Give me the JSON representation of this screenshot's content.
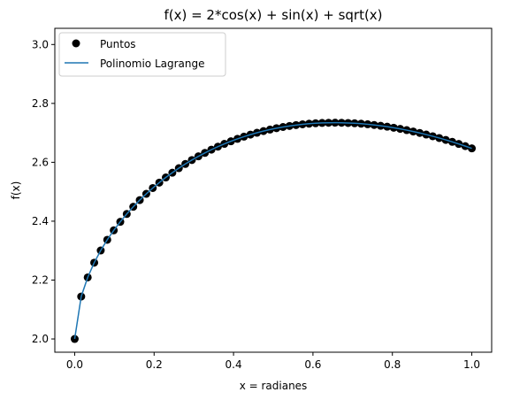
{
  "chart_data": {
    "type": "line",
    "title": "f(x) = 2*cos(x) + sin(x) + sqrt(x)",
    "xlabel": "x = radianes",
    "ylabel": "f(x)",
    "xlim": [
      -0.05,
      1.05
    ],
    "ylim": [
      1.955,
      3.055
    ],
    "xticks": [
      0.0,
      0.2,
      0.4,
      0.6,
      0.8,
      1.0
    ],
    "xtick_labels": [
      "0.0",
      "0.2",
      "0.4",
      "0.6",
      "0.8",
      "1.0"
    ],
    "yticks": [
      2.0,
      2.2,
      2.4,
      2.6,
      2.8,
      3.0
    ],
    "ytick_labels": [
      "2.0",
      "2.2",
      "2.4",
      "2.6",
      "2.8",
      "3.0"
    ],
    "grid": false,
    "legend_position": "top-left",
    "legend": [
      "Puntos",
      "Polinomio Lagrange"
    ],
    "series": [
      {
        "name": "Puntos",
        "style": "scatter",
        "color": "#000000",
        "x": [
          0.0,
          0.0164,
          0.0328,
          0.0492,
          0.0656,
          0.082,
          0.0984,
          0.1148,
          0.1311,
          0.1475,
          0.1639,
          0.1803,
          0.1967,
          0.2131,
          0.2295,
          0.2459,
          0.2623,
          0.2787,
          0.2951,
          0.3115,
          0.3279,
          0.3443,
          0.3607,
          0.377,
          0.3934,
          0.4098,
          0.4262,
          0.4426,
          0.459,
          0.4754,
          0.4918,
          0.5082,
          0.5246,
          0.541,
          0.5574,
          0.5738,
          0.5902,
          0.6066,
          0.623,
          0.6393,
          0.6557,
          0.6721,
          0.6885,
          0.7049,
          0.7213,
          0.7377,
          0.7541,
          0.7705,
          0.7869,
          0.8033,
          0.8197,
          0.8361,
          0.8525,
          0.8689,
          0.8852,
          0.9016,
          0.918,
          0.9344,
          0.9508,
          0.9672,
          0.9836,
          1.0
        ],
        "y": [
          2.0,
          2.144,
          2.2091,
          2.2591,
          2.3006,
          2.3368,
          2.3689,
          2.3979,
          2.4245,
          2.449,
          2.4717,
          2.4929,
          2.5126,
          2.5311,
          2.5485,
          2.5647,
          2.58,
          2.5943,
          2.6077,
          2.6202,
          2.6319,
          2.6429,
          2.6531,
          2.6626,
          2.6714,
          2.6796,
          2.6871,
          2.694,
          2.7003,
          2.706,
          2.7112,
          2.7158,
          2.7199,
          2.7234,
          2.7264,
          2.729,
          2.731,
          2.7326,
          2.7337,
          2.7343,
          2.7345,
          2.7343,
          2.7336,
          2.7325,
          2.731,
          2.7291,
          2.7267,
          2.724,
          2.7209,
          2.7174,
          2.7135,
          2.7092,
          2.7046,
          2.6996,
          2.6942,
          2.6885,
          2.6825,
          2.6761,
          2.6694,
          2.6623,
          2.6549,
          2.6472
        ]
      },
      {
        "name": "Polinomio Lagrange",
        "style": "line",
        "color": "#1f77b4",
        "x": [
          0.0,
          0.0164,
          0.0328,
          0.0492,
          0.0656,
          0.082,
          0.0984,
          0.1148,
          0.1311,
          0.1475,
          0.1639,
          0.1803,
          0.1967,
          0.2131,
          0.2295,
          0.2459,
          0.2623,
          0.2787,
          0.2951,
          0.3115,
          0.3279,
          0.3443,
          0.3607,
          0.377,
          0.3934,
          0.4098,
          0.4262,
          0.4426,
          0.459,
          0.4754,
          0.4918,
          0.5082,
          0.5246,
          0.541,
          0.5574,
          0.5738,
          0.5902,
          0.6066,
          0.623,
          0.6393,
          0.6557,
          0.6721,
          0.6885,
          0.7049,
          0.7213,
          0.7377,
          0.7541,
          0.7705,
          0.7869,
          0.8033,
          0.8197,
          0.8361,
          0.8525,
          0.8689,
          0.8852,
          0.9016,
          0.918,
          0.9344,
          0.9508,
          0.9672,
          0.9836,
          1.0
        ],
        "y": [
          2.0,
          2.144,
          2.2091,
          2.2591,
          2.3006,
          2.3368,
          2.3689,
          2.3979,
          2.4245,
          2.449,
          2.4717,
          2.4929,
          2.5126,
          2.5311,
          2.5485,
          2.5647,
          2.58,
          2.5943,
          2.6077,
          2.6202,
          2.6319,
          2.6429,
          2.6531,
          2.6626,
          2.6714,
          2.6796,
          2.6871,
          2.694,
          2.7003,
          2.706,
          2.7112,
          2.7158,
          2.7199,
          2.7234,
          2.7264,
          2.729,
          2.731,
          2.7326,
          2.7337,
          2.7343,
          2.7345,
          2.7343,
          2.7336,
          2.7325,
          2.731,
          2.7291,
          2.7267,
          2.724,
          2.7209,
          2.7174,
          2.7135,
          2.7092,
          2.7046,
          2.6996,
          2.6942,
          2.6885,
          2.6825,
          2.6761,
          2.6694,
          2.6623,
          2.6549,
          2.6472
        ]
      }
    ]
  }
}
